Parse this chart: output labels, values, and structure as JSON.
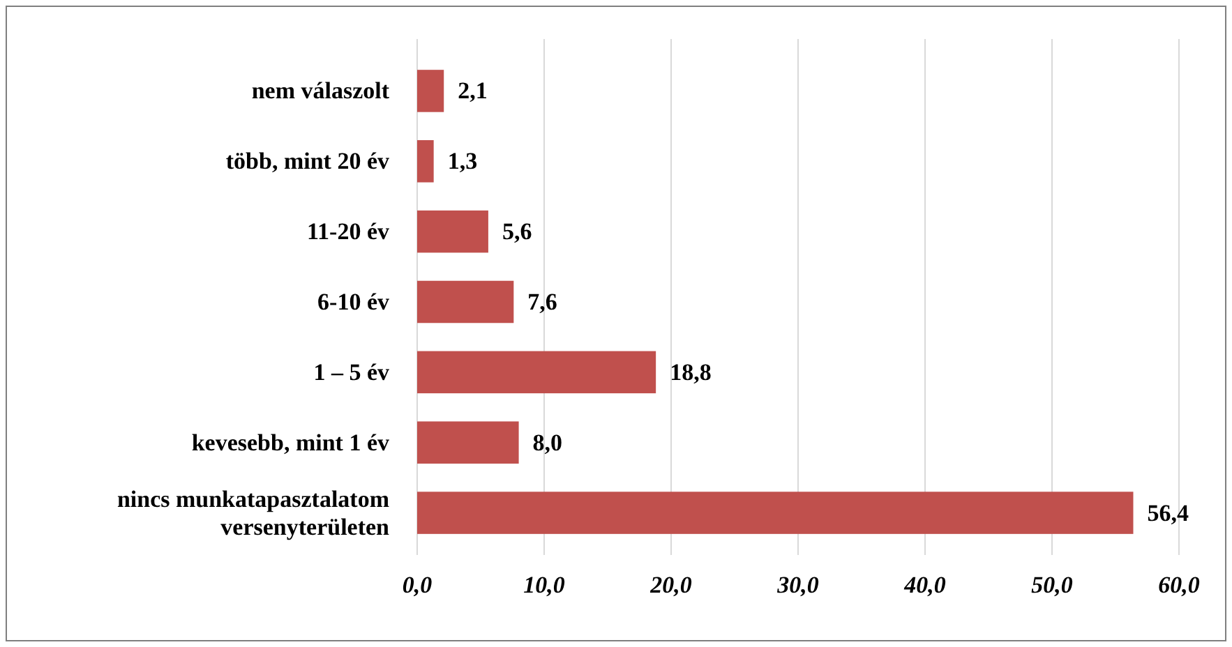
{
  "chart_data": {
    "type": "bar",
    "orientation": "horizontal",
    "categories": [
      "nem válaszolt",
      "több, mint 20 év",
      "11-20 év",
      "6-10 év",
      "1 – 5 év",
      "kevesebb, mint 1 év",
      "nincs munkatapasztalatom\nversenyterületen"
    ],
    "values": [
      2.1,
      1.3,
      5.6,
      7.6,
      18.8,
      8.0,
      56.4
    ],
    "value_labels": [
      "2,1",
      "1,3",
      "5,6",
      "7,6",
      "18,8",
      "8,0",
      "56,4"
    ],
    "color": "#c0504d",
    "xlim": [
      0,
      60
    ],
    "xticks": [
      {
        "value": 0,
        "label": "0,0"
      },
      {
        "value": 10,
        "label": "10,0"
      },
      {
        "value": 20,
        "label": "20,0"
      },
      {
        "value": 30,
        "label": "30,0"
      },
      {
        "value": 40,
        "label": "40,0"
      },
      {
        "value": 50,
        "label": "50,0"
      },
      {
        "value": 60,
        "label": "60,0"
      }
    ],
    "grid": "x"
  }
}
